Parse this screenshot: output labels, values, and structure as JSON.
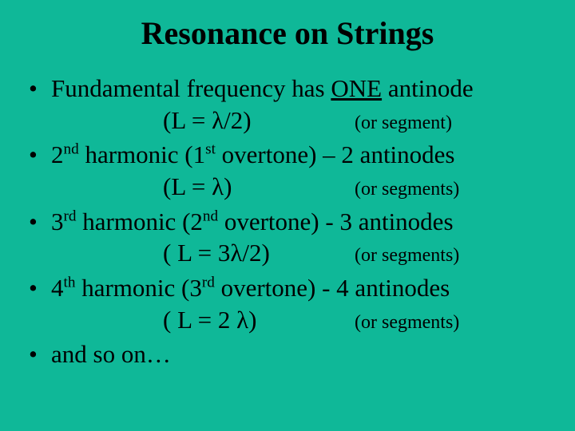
{
  "background_color": "#0fb898",
  "text_color": "#000000",
  "font_family": "Times New Roman",
  "title": "Resonance on Strings",
  "title_fontsize": 40,
  "body_fontsize": 31,
  "segment_fontsize": 24,
  "bullets": [
    {
      "prefix": "Fundamental frequency has ",
      "emph": "ONE",
      "suffix": " antinode",
      "formula": "(L = λ/2)",
      "segnote": "(or segment)"
    },
    {
      "num": "2",
      "ord": "nd",
      "mid": " harmonic (1",
      "ord2": "st",
      "tail": " overtone) – 2 antinodes",
      "formula": "(L = λ)",
      "segnote": "(or segments)"
    },
    {
      "num": "3",
      "ord": "rd",
      "mid": " harmonic (2",
      "ord2": "nd",
      "tail": " overtone) - 3 antinodes",
      "formula": "( L = 3λ/2)",
      "segnote": "(or segments)"
    },
    {
      "num": "4",
      "ord": "th",
      "mid": " harmonic (3",
      "ord2": "rd",
      "tail": " overtone) - 4 antinodes",
      "formula": "( L = 2 λ)",
      "segnote": "(or segments)"
    },
    {
      "plain": "and so on…"
    }
  ]
}
